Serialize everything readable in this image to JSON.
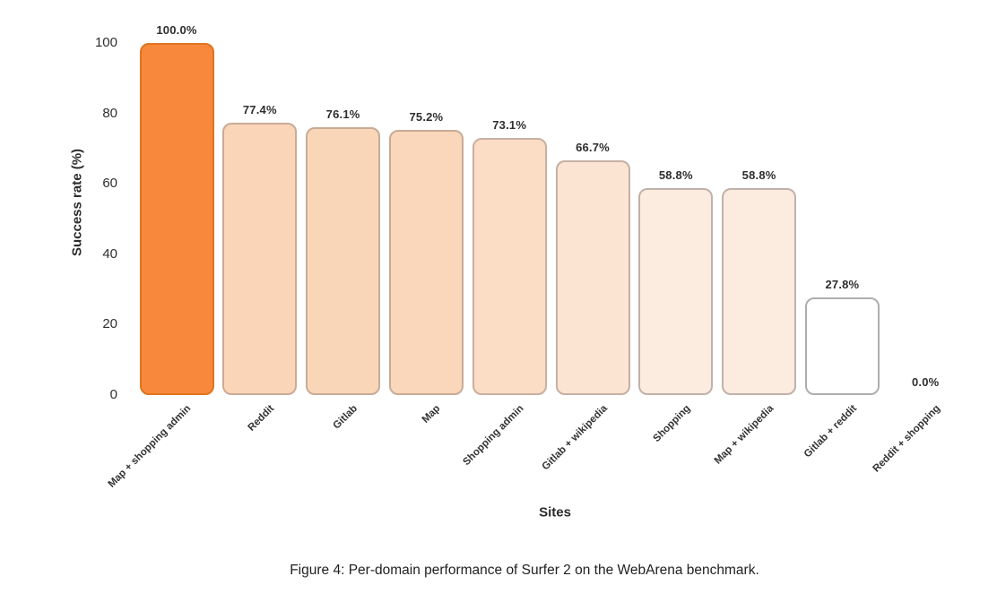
{
  "figure": {
    "caption": "Figure 4: Per-domain performance of Surfer 2 on the WebArena benchmark."
  },
  "chart_data": {
    "type": "bar",
    "title": "",
    "xlabel": "Sites",
    "ylabel": "Success rate (%)",
    "categories": [
      "Map + shopping admin",
      "Reddit",
      "Gitlab",
      "Map",
      "Shopping admin",
      "Gitlab + wikipedia",
      "Shopping",
      "Map + wikipedia",
      "Gitlab + reddit",
      "Reddit + shopping"
    ],
    "values": [
      100.0,
      77.4,
      76.1,
      75.2,
      73.1,
      66.7,
      58.8,
      58.8,
      27.8,
      0.0
    ],
    "value_labels": [
      "100.0%",
      "77.4%",
      "76.1%",
      "75.2%",
      "73.1%",
      "66.7%",
      "58.8%",
      "58.8%",
      "27.8%",
      "0.0%"
    ],
    "ylim": [
      0,
      100
    ],
    "yticks": [
      0,
      20,
      40,
      60,
      80,
      100
    ],
    "grid": false,
    "legend_position": "none",
    "bar_styles": [
      {
        "fill": "#f8893c",
        "border": "#e0741f"
      },
      {
        "fill": "#fad5b7",
        "border": "#c8ab97"
      },
      {
        "fill": "#fad6b9",
        "border": "#c8ab97"
      },
      {
        "fill": "#fad7ba",
        "border": "#c8ab97"
      },
      {
        "fill": "#fbdcc4",
        "border": "#c9b0a0"
      },
      {
        "fill": "#fce4d2",
        "border": "#c4b0a4"
      },
      {
        "fill": "#fcebdf",
        "border": "#c0b1a9"
      },
      {
        "fill": "#fcebdf",
        "border": "#c0b1a9"
      },
      {
        "fill": "#ffffff",
        "border": "#aeaeae"
      },
      {
        "fill": "none",
        "border": "none"
      }
    ],
    "text_color": "#2e2e2e"
  }
}
